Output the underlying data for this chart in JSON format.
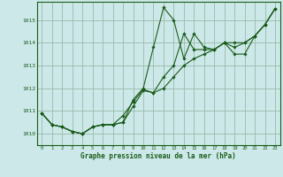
{
  "xlabel": "Graphe pression niveau de la mer (hPa)",
  "background_color": "#cce8e8",
  "plot_bg_color": "#cce8e8",
  "line_color": "#1a5c1a",
  "grid_color": "#99bbaa",
  "ylim": [
    1009.5,
    1015.8
  ],
  "xlim": [
    -0.5,
    23.5
  ],
  "x_ticks": [
    0,
    1,
    2,
    3,
    4,
    5,
    6,
    7,
    8,
    9,
    10,
    11,
    12,
    13,
    14,
    15,
    16,
    17,
    18,
    19,
    20,
    21,
    22,
    23
  ],
  "y_ticks": [
    1010,
    1011,
    1012,
    1013,
    1014,
    1015
  ],
  "series1": [
    1010.9,
    1010.4,
    1010.3,
    1010.1,
    1010.0,
    1010.3,
    1010.4,
    1010.4,
    1010.5,
    1011.5,
    1012.0,
    1013.8,
    1015.55,
    1015.0,
    1013.3,
    1014.4,
    1013.8,
    1013.7,
    1014.0,
    1013.5,
    1013.5,
    1014.3,
    1014.8,
    1015.5
  ],
  "series2": [
    1010.9,
    1010.4,
    1010.3,
    1010.1,
    1010.0,
    1010.3,
    1010.4,
    1010.4,
    1010.5,
    1011.2,
    1011.9,
    1011.8,
    1012.0,
    1012.5,
    1013.0,
    1013.3,
    1013.5,
    1013.7,
    1014.0,
    1013.8,
    1014.0,
    1014.3,
    1014.8,
    1015.5
  ],
  "series3": [
    1010.9,
    1010.4,
    1010.3,
    1010.1,
    1010.0,
    1010.3,
    1010.4,
    1010.4,
    1010.8,
    1011.4,
    1011.95,
    1011.8,
    1012.5,
    1013.0,
    1014.4,
    1013.7,
    1013.7,
    1013.7,
    1014.0,
    1014.0,
    1014.0,
    1014.3,
    1014.8,
    1015.5
  ]
}
